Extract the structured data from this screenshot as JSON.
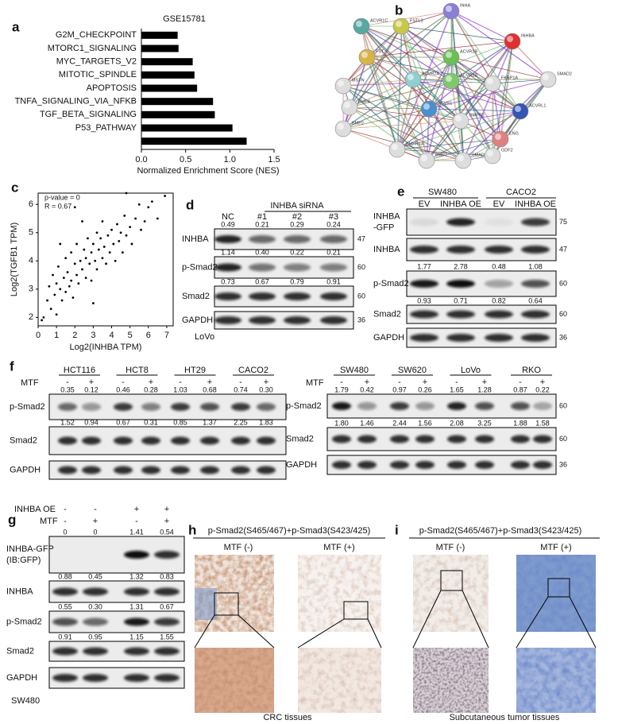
{
  "chart_data": [
    {
      "type": "bar",
      "label": "a",
      "title": "GSE15781",
      "xlabel": "Normalized Enrichment Score (NES)",
      "orientation": "horizontal",
      "categories": [
        "G2M_CHECKPOINT",
        "MTORC1_SIGNALING",
        "MYC_TARGETS_V2",
        "MITOTIC_SPINDLE",
        "APOPTOSIS",
        "TNFA_SIGNALING_VIA_NFKB",
        "TGF_BETA_SIGNALING",
        "P53_PATHWAY",
        null
      ],
      "values": [
        0.41,
        0.42,
        0.58,
        0.6,
        0.63,
        0.81,
        0.83,
        1.03,
        1.19
      ],
      "color": "#000000",
      "xlim": [
        0,
        1.5
      ],
      "xticks": [
        {
          "value": 0,
          "label": "0.0"
        },
        0.5,
        {
          "value": 1,
          "label": "1.0"
        },
        1.5
      ]
    },
    {
      "type": "scatter",
      "label": "c",
      "xlabel": "Log2(INHBA TPM)",
      "ylabel": "Log2(TGFB1 TPM)",
      "annotations": [
        "p-value = 0",
        "R = 0.67"
      ],
      "x": [
        0.3,
        0.5,
        0.6,
        0.7,
        0.8,
        0.9,
        1.0,
        1.0,
        1.1,
        1.2,
        1.3,
        1.4,
        1.5,
        1.5,
        1.6,
        1.7,
        1.8,
        1.8,
        1.9,
        2.0,
        2.1,
        2.1,
        2.2,
        2.3,
        2.4,
        2.4,
        2.5,
        2.6,
        2.6,
        2.7,
        2.8,
        2.9,
        2.9,
        3.0,
        3.1,
        3.2,
        3.2,
        3.3,
        3.4,
        3.5,
        3.5,
        3.6,
        3.7,
        3.8,
        3.9,
        4.0,
        4.1,
        4.2,
        4.3,
        4.4,
        4.5,
        4.6,
        4.7,
        4.8,
        5.0,
        5.1,
        5.3,
        5.5,
        5.6,
        5.8,
        6.0,
        6.2,
        6.5,
        6.9,
        0.2,
        1.2,
        2.0,
        4.8,
        3.0
      ],
      "values": [
        2.0,
        2.6,
        3.1,
        2.3,
        3.5,
        2.8,
        3.2,
        2.1,
        3.8,
        3.0,
        2.6,
        3.4,
        4.1,
        2.9,
        3.6,
        3.1,
        4.3,
        3.3,
        2.7,
        3.9,
        3.5,
        4.6,
        3.2,
        4.0,
        3.7,
        5.4,
        4.4,
        3.4,
        4.1,
        4.8,
        3.9,
        4.3,
        3.3,
        4.6,
        4.0,
        5.0,
        3.7,
        4.4,
        4.8,
        4.1,
        5.4,
        4.5,
        3.9,
        4.9,
        4.3,
        5.1,
        4.6,
        4.0,
        5.3,
        4.7,
        5.0,
        4.3,
        5.6,
        4.9,
        5.2,
        4.6,
        5.5,
        6.0,
        5.1,
        5.4,
        5.9,
        6.1,
        5.5,
        6.3,
        1.9,
        4.6,
        5.9,
        6.4,
        2.5
      ],
      "color": "#000000",
      "xlim": [
        0,
        7.35
      ],
      "ylim": [
        1.7,
        6.4
      ],
      "xticks": [
        0,
        1,
        2,
        3,
        4,
        5,
        6,
        7
      ],
      "yticks": [
        2,
        3,
        4,
        5,
        6
      ]
    }
  ],
  "panel_b": {
    "label": "b",
    "nodes": [
      "INHA",
      "ACVR1C",
      "FSTL3",
      "INHBA",
      "FST",
      "ACVR1B",
      "ACVR2B",
      "MSTN",
      "ACVR2A",
      "FKBP1A",
      "SMAD2",
      "BMP4",
      "ACVR1",
      "ACVRL1",
      "BMPR2",
      "BMP2",
      "ENG",
      "BMPR1A",
      "BMP7",
      "SMAD9",
      "GDF2"
    ]
  },
  "panel_d": {
    "label": "d",
    "group": "INHBA siRNA",
    "lanes": [
      "NC",
      "#1",
      "#2",
      "#3"
    ],
    "rows": [
      {
        "name": "INHBA",
        "mw": 47,
        "quant": [
          "0.49",
          "0.21",
          "0.29",
          "0.24"
        ]
      },
      {
        "name": "p-Smad2",
        "mw": 60,
        "quant": [
          "1.14",
          "0.40",
          "0.22",
          "0.21"
        ]
      },
      {
        "name": "Smad2",
        "mw": 60,
        "quant": [
          "0.73",
          "0.67",
          "0.79",
          "0.91"
        ]
      },
      {
        "name": "GAPDH",
        "mw": 36
      }
    ],
    "cell_line": "LoVo"
  },
  "panel_e": {
    "label": "e",
    "groups": [
      "SW480",
      "CACO2"
    ],
    "lanes": [
      "EV",
      "INHBA OE",
      "EV",
      "INHBA OE"
    ],
    "rows": [
      {
        "name": [
          "INHBA",
          "-GFP"
        ],
        "mw": 75
      },
      {
        "name": "INHBA",
        "mw": 47
      },
      {
        "name": "p-Smad2",
        "mw": 60,
        "quant": [
          "1.77",
          "2.78",
          "0.48",
          "1.08"
        ]
      },
      {
        "name": "Smad2",
        "mw": 60,
        "quant": [
          "0.93",
          "0.71",
          "0.82",
          "0.64"
        ]
      },
      {
        "name": "GAPDH",
        "mw": 36
      }
    ]
  },
  "panel_f": {
    "label": "f",
    "left": {
      "groups": [
        "HCT116",
        "HCT8",
        "HT29",
        "CACO2"
      ],
      "treatment": "MTF",
      "signs": [
        "-",
        "+",
        "-",
        "+",
        "-",
        "+",
        "-",
        "+"
      ],
      "rows": [
        {
          "name": "p-Smad2",
          "quant": [
            "0.35",
            "0.12",
            "0.46",
            "0.28",
            "1.03",
            "0.68",
            "0.74",
            "0.30"
          ]
        },
        {
          "name": "Smad2",
          "quant": [
            "1.52",
            "0.94",
            "0.67",
            "0.31",
            "0.85",
            "1.37",
            "2.25",
            "1.83"
          ]
        },
        {
          "name": "GAPDH"
        }
      ]
    },
    "right": {
      "groups": [
        "SW480",
        "SW620",
        "LoVo",
        "RKO"
      ],
      "treatment": "MTF",
      "signs": [
        "-",
        "+",
        "-",
        "+",
        "-",
        "+",
        "-",
        "+"
      ],
      "rows": [
        {
          "name": "p-Smad2",
          "mw": 60,
          "quant": [
            "1.79",
            "0.42",
            "0.97",
            "0.26",
            "1.65",
            "1.28",
            "0.87",
            "0.22"
          ]
        },
        {
          "name": "Smad2",
          "mw": 60,
          "quant": [
            "1.80",
            "1.46",
            "2.44",
            "1.56",
            "2.08",
            "3.25",
            "1.88",
            "1.58"
          ]
        },
        {
          "name": "GAPDH",
          "mw": 36
        }
      ]
    }
  },
  "panel_g": {
    "label": "g",
    "conditions": [
      {
        "name": "INHBA OE",
        "signs": [
          "-",
          "-",
          "+",
          "+"
        ]
      },
      {
        "name": "MTF",
        "signs": [
          "-",
          "+",
          "-",
          "+"
        ]
      }
    ],
    "rows": [
      {
        "name": [
          "INHBA-GFP",
          "(IB:GFP)"
        ],
        "quant": [
          "0",
          "0",
          "1.41",
          "0.54"
        ]
      },
      {
        "name": "INHBA",
        "quant": [
          "0.88",
          "0.45",
          "1.32",
          "0.83"
        ]
      },
      {
        "name": "p-Smad2",
        "quant": [
          "0.55",
          "0.30",
          "1.31",
          "0.67"
        ]
      },
      {
        "name": "Smad2",
        "quant": [
          "0.91",
          "0.95",
          "1.15",
          "1.55"
        ]
      },
      {
        "name": "GAPDH"
      }
    ],
    "cell_line": "SW480"
  },
  "panel_h": {
    "label": "h",
    "title": "p-Smad2(S465/467)+p-Smad3(S423/425)",
    "conditions": [
      "MTF (-)",
      "MTF (+)"
    ],
    "caption": "CRC tissues"
  },
  "panel_i": {
    "label": "i",
    "title": "p-Smad2(S465/467)+p-Smad3(S423/425)",
    "conditions": [
      "MTF (-)",
      "MTF (+)"
    ],
    "caption": "Subcutaneous tumor tissues"
  }
}
